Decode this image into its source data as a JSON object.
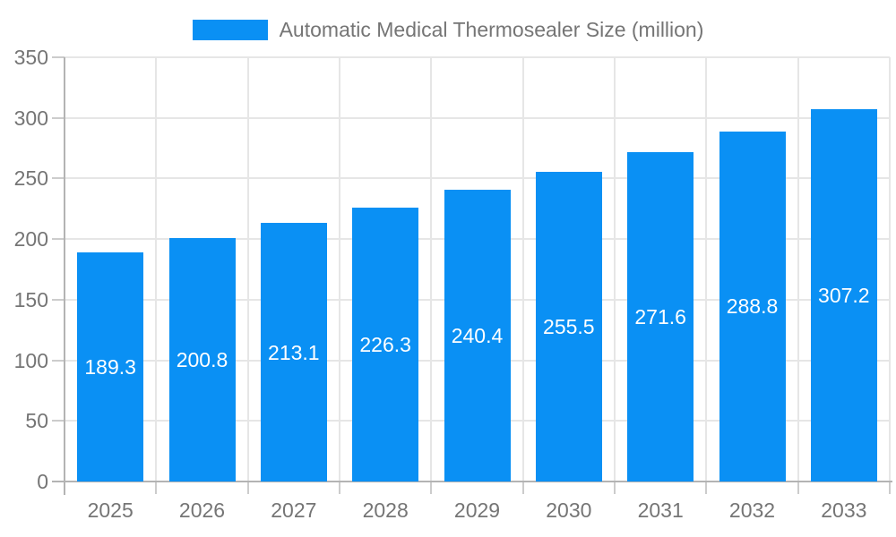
{
  "legend": {
    "label": "Automatic Medical Thermosealer Size (million)"
  },
  "colors": {
    "bar": "#0a90f4",
    "grid": "#e6e6e6",
    "axis": "#b3b3b3",
    "tick": "#cccccc",
    "axis_text": "#757575",
    "value_text": "#ffffff",
    "background": "#ffffff"
  },
  "chart_data": {
    "type": "bar",
    "title": "Automatic Medical Thermosealer Size (million)",
    "categories": [
      "2025",
      "2026",
      "2027",
      "2028",
      "2029",
      "2030",
      "2031",
      "2032",
      "2033"
    ],
    "values": [
      189.3,
      200.8,
      213.1,
      226.3,
      240.4,
      255.5,
      271.6,
      288.8,
      307.2
    ],
    "value_labels": [
      "189.3",
      "200.8",
      "213.1",
      "226.3",
      "240.4",
      "255.5",
      "271.6",
      "288.8",
      "307.2"
    ],
    "xlabel": "",
    "ylabel": "",
    "ylim": [
      0,
      350
    ],
    "yticks": [
      0,
      50,
      100,
      150,
      200,
      250,
      300,
      350
    ],
    "grid": true,
    "legend_position": "top",
    "value_label_position": "inside-center"
  }
}
